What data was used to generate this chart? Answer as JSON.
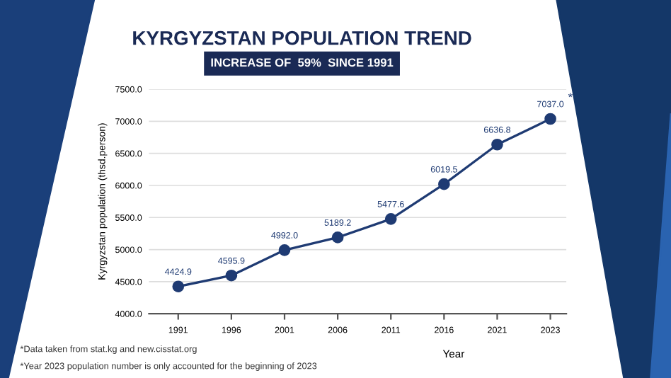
{
  "chart_data": {
    "type": "line",
    "title": "KYRGYZSTAN POPULATION TREND",
    "subtitle": "INCREASE OF  59%  SINCE 1991",
    "xlabel": "Year",
    "ylabel": "Kyrgyzstan population (thsd.person)",
    "categories": [
      "1991",
      "1996",
      "2001",
      "2006",
      "2011",
      "2016",
      "2021",
      "2023"
    ],
    "series": [
      {
        "color": "#1f3b73",
        "values": [
          4424.9,
          4595.9,
          4992.0,
          5189.2,
          5477.6,
          6019.5,
          6636.8,
          7037.0
        ]
      }
    ],
    "ylim": [
      4000,
      7500
    ],
    "yticks": [
      {
        "value": 4000,
        "label": "4000.0"
      },
      {
        "value": 4500,
        "label": "4500.0"
      },
      {
        "value": 5000,
        "label": "5000.0"
      },
      {
        "value": 5500,
        "label": "5500.0"
      },
      {
        "value": 6000,
        "label": "6000.0"
      },
      {
        "value": 6500,
        "label": "6500.0"
      },
      {
        "value": 7000,
        "label": "7000.0"
      },
      {
        "value": 7500,
        "label": "7500.0"
      }
    ],
    "grid": "y",
    "marker": "circle",
    "line_style": "solid",
    "value_labels": [
      "4424.9",
      "4595.9",
      "4992.0",
      "5189.2",
      "5477.6",
      "6019.5",
      "6636.8",
      "7037.0"
    ],
    "annotations": [
      {
        "text": "*",
        "x": "2023",
        "y": 7037.0
      },
      "*Data taken from stat.kg and new.cisstat.org",
      "*Year 2023 population number is only accounted for the beginning of 2023"
    ]
  }
}
